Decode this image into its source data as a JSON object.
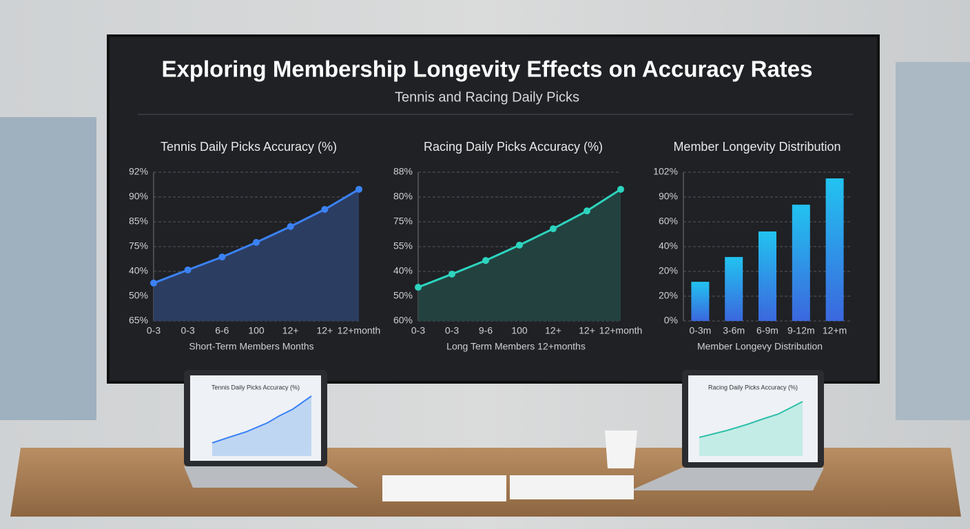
{
  "header": {
    "title": "Exploring Membership Longevity Effects on Accuracy Rates",
    "subtitle": "Tennis and Racing Daily Picks"
  },
  "chart_data": [
    {
      "type": "line",
      "title": "Tennis Daily Picks Accuracy (%)",
      "x_label": "Short-Term Members Months",
      "categories": [
        "0-3",
        "0-3",
        "6-6",
        "100",
        "12+",
        "12+",
        "12+month"
      ],
      "values": [
        1.53,
        2.06,
        2.58,
        3.17,
        3.81,
        4.5,
        5.31
      ],
      "color": "#3b82f6",
      "area_color": "#2c3d62",
      "ylim": [
        0,
        6
      ],
      "yticks": [
        {
          "value": 0,
          "label": "65%"
        },
        {
          "value": 1,
          "label": "50%"
        },
        {
          "value": 2,
          "label": "40%"
        },
        {
          "value": 3,
          "label": "75%"
        },
        {
          "value": 4,
          "label": "85%"
        },
        {
          "value": 5,
          "label": "90%"
        },
        {
          "value": 6,
          "label": "92%"
        }
      ],
      "grid": true
    },
    {
      "type": "line",
      "title": "Racing Daily Picks Accuracy (%)",
      "x_label": "Long Term Members 12+months",
      "categories": [
        "0-3",
        "0-3",
        "9-6",
        "100",
        "12+",
        "12+",
        "12+month"
      ],
      "values": [
        1.36,
        1.89,
        2.44,
        3.06,
        3.72,
        4.44,
        5.31
      ],
      "color": "#2dd4bf",
      "area_color": "#23423f",
      "ylim": [
        0,
        6
      ],
      "yticks": [
        {
          "value": 0,
          "label": "60%"
        },
        {
          "value": 1,
          "label": "50%"
        },
        {
          "value": 2,
          "label": "40%"
        },
        {
          "value": 3,
          "label": "55%"
        },
        {
          "value": 4,
          "label": "75%"
        },
        {
          "value": 5,
          "label": "80%"
        },
        {
          "value": 6,
          "label": "88%"
        }
      ],
      "grid": true
    },
    {
      "type": "bar",
      "title": "Member Longevity Distribution",
      "x_label": "Member Longevy Distribution",
      "categories": [
        "0-3m",
        "3-6m",
        "6-9m",
        "9-12m",
        "12+m"
      ],
      "values": [
        1.58,
        2.58,
        3.61,
        4.69,
        5.75
      ],
      "color": "#2ab4ee",
      "ylim": [
        0,
        6
      ],
      "yticks": [
        {
          "value": 0,
          "label": "0%"
        },
        {
          "value": 1,
          "label": "20%"
        },
        {
          "value": 2,
          "label": "20%"
        },
        {
          "value": 3,
          "label": "40%"
        },
        {
          "value": 4,
          "label": "60%"
        },
        {
          "value": 5,
          "label": "90%"
        },
        {
          "value": 6,
          "label": "102%"
        }
      ],
      "grid": true
    }
  ],
  "laptops": [
    {
      "title": "Tennis Daily Picks Accuracy (%)"
    },
    {
      "title": "Racing Daily Picks Accuracy (%)"
    }
  ]
}
